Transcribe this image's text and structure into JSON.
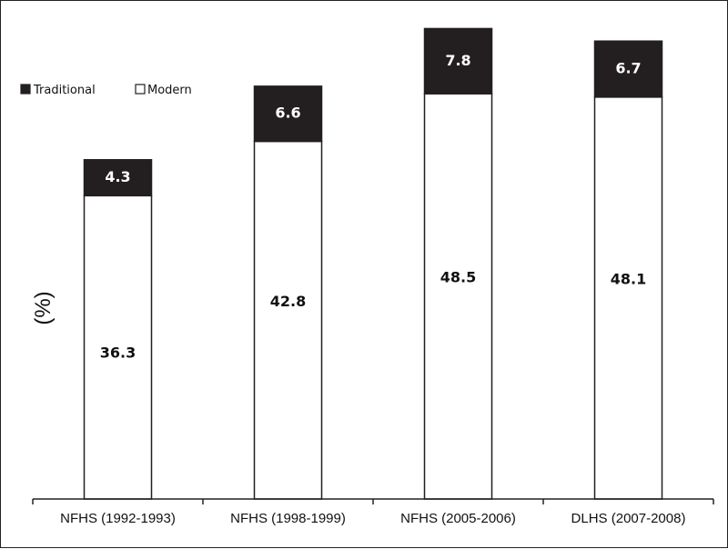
{
  "chart_data": {
    "type": "bar",
    "stacked": true,
    "categories": [
      "NFHS (1992-1993)",
      "NFHS (1998-1999)",
      "NFHS (2005-2006)",
      "DLHS (2007-2008)"
    ],
    "series": [
      {
        "name": "Modern",
        "values": [
          36.3,
          42.8,
          48.5,
          48.1
        ],
        "color": "#ffffff"
      },
      {
        "name": "Traditional",
        "values": [
          4.3,
          6.6,
          7.8,
          6.7
        ],
        "color": "#231f20"
      }
    ],
    "title": "",
    "xlabel": "",
    "ylabel": "(%)",
    "ylim": [
      0,
      57
    ],
    "legend_position": "top-left",
    "grid": false,
    "colors": {
      "axis": "#222222",
      "text": "#111111"
    }
  }
}
